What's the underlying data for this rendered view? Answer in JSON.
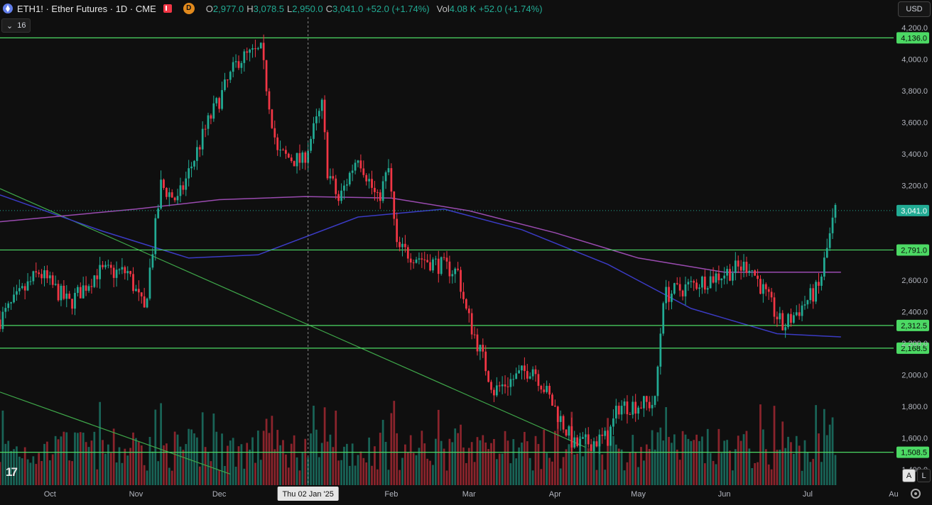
{
  "header": {
    "symbol": "ETH1!",
    "title": "ETH1! · Ether Futures · 1D · CME",
    "badge": "D",
    "o_label": "O",
    "o": "2,977.0",
    "h_label": "H",
    "h": "3,078.5",
    "l_label": "L",
    "l": "2,950.0",
    "c_label": "C",
    "c": "3,041.0 +52.0 (+1.74%)",
    "vol_label": "Vol",
    "vol": "4.08 K +52.0 (+1.74%)"
  },
  "currency": "USD",
  "collapse_count": "16",
  "crosshair_label": "Thu 02 Jan '25",
  "auto_label": "A",
  "log_label": "L",
  "colors": {
    "up": "#22ab94",
    "down": "#f23645",
    "level": "#4cd964",
    "ma_fast": "#3b3bc4",
    "ma_slow": "#9a4bb0",
    "trend": "#3fa84a",
    "bg": "#0f0f0f"
  },
  "chart_data": {
    "type": "candlestick",
    "ylim": [
      1300,
      4250
    ],
    "y_ticks": [
      "4,200.0",
      "4,000.0",
      "3,800.0",
      "3,600.0",
      "3,400.0",
      "3,200.0",
      "2,600.0",
      "2,400.0",
      "2,200.0",
      "2,000.0",
      "1,800.0",
      "1,600.0",
      "1,400.0"
    ],
    "y_tick_values": [
      4200,
      4000,
      3800,
      3600,
      3400,
      3200,
      2600,
      2400,
      2200,
      2000,
      1800,
      1600,
      1400
    ],
    "x_ticks": [
      "Oct",
      "Nov",
      "Dec",
      "Feb",
      "Mar",
      "Apr",
      "May",
      "Jun",
      "Jul",
      "Au"
    ],
    "x_tick_dates": [
      "2024-10-01",
      "2024-11-01",
      "2024-12-01",
      "2025-02-01",
      "2025-03-01",
      "2025-04-01",
      "2025-05-01",
      "2025-06-01",
      "2025-07-01",
      "2025-08-01"
    ],
    "x_range": [
      "2024-09-13",
      "2025-08-01"
    ],
    "crosshair_date": "2025-01-02",
    "levels": [
      {
        "value": 4136.0,
        "label": "4,136.0"
      },
      {
        "value": 2791.0,
        "label": "2,791.0"
      },
      {
        "value": 2312.5,
        "label": "2,312.5"
      },
      {
        "value": 2168.5,
        "label": "2,168.5"
      },
      {
        "value": 1508.5,
        "label": "1,508.5"
      }
    ],
    "last_price": {
      "value": 3041.0,
      "label": "3,041.0"
    },
    "trendlines": [
      {
        "from": [
          "2024-09-13",
          3180
        ],
        "to": [
          "2025-04-12",
          1540
        ]
      },
      {
        "from": [
          "2024-09-13",
          1890
        ],
        "to": [
          "2024-12-05",
          1370
        ]
      }
    ],
    "ma_fast": [
      [
        "2024-09-13",
        3140
      ],
      [
        "2024-10-20",
        2910
      ],
      [
        "2024-11-20",
        2740
      ],
      [
        "2024-12-15",
        2760
      ],
      [
        "2025-01-20",
        3000
      ],
      [
        "2025-02-20",
        3050
      ],
      [
        "2025-03-20",
        2920
      ],
      [
        "2025-04-20",
        2700
      ],
      [
        "2025-05-20",
        2420
      ],
      [
        "2025-06-20",
        2260
      ],
      [
        "2025-07-13",
        2240
      ]
    ],
    "ma_slow": [
      [
        "2024-09-13",
        2970
      ],
      [
        "2024-11-01",
        3050
      ],
      [
        "2024-12-01",
        3110
      ],
      [
        "2025-01-01",
        3130
      ],
      [
        "2025-02-01",
        3120
      ],
      [
        "2025-03-01",
        3040
      ],
      [
        "2025-04-01",
        2900
      ],
      [
        "2025-05-01",
        2740
      ],
      [
        "2025-06-01",
        2650
      ],
      [
        "2025-07-13",
        2650
      ]
    ],
    "volume_ylim": [
      0,
      1
    ]
  }
}
